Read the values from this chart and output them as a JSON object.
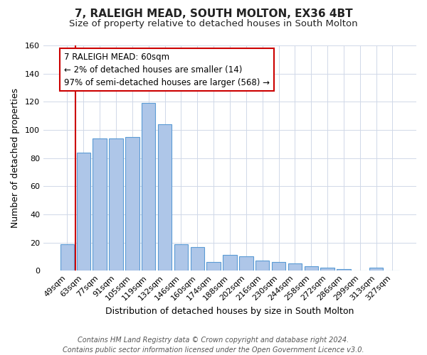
{
  "title": "7, RALEIGH MEAD, SOUTH MOLTON, EX36 4BT",
  "subtitle": "Size of property relative to detached houses in South Molton",
  "xlabel": "Distribution of detached houses by size in South Molton",
  "ylabel": "Number of detached properties",
  "bin_labels": [
    "49sqm",
    "63sqm",
    "77sqm",
    "91sqm",
    "105sqm",
    "119sqm",
    "132sqm",
    "146sqm",
    "160sqm",
    "174sqm",
    "188sqm",
    "202sqm",
    "216sqm",
    "230sqm",
    "244sqm",
    "258sqm",
    "272sqm",
    "286sqm",
    "299sqm",
    "313sqm",
    "327sqm"
  ],
  "bar_values": [
    19,
    84,
    94,
    94,
    95,
    119,
    104,
    19,
    17,
    6,
    11,
    10,
    7,
    6,
    5,
    3,
    2,
    1,
    0,
    2,
    0
  ],
  "bar_color": "#AEC6E8",
  "bar_edge_color": "#5B9BD5",
  "highlight_line_color": "#CC0000",
  "annotation_text": "7 RALEIGH MEAD: 60sqm\n← 2% of detached houses are smaller (14)\n97% of semi-detached houses are larger (568) →",
  "annotation_box_color": "#CC0000",
  "ylim": [
    0,
    160
  ],
  "yticks": [
    0,
    20,
    40,
    60,
    80,
    100,
    120,
    140,
    160
  ],
  "footer_line1": "Contains HM Land Registry data © Crown copyright and database right 2024.",
  "footer_line2": "Contains public sector information licensed under the Open Government Licence v3.0.",
  "background_color": "#ffffff",
  "grid_color": "#d0d8e8",
  "title_fontsize": 11,
  "subtitle_fontsize": 9.5,
  "xlabel_fontsize": 9,
  "ylabel_fontsize": 9,
  "tick_fontsize": 8,
  "footer_fontsize": 7,
  "annotation_fontsize": 8.5
}
